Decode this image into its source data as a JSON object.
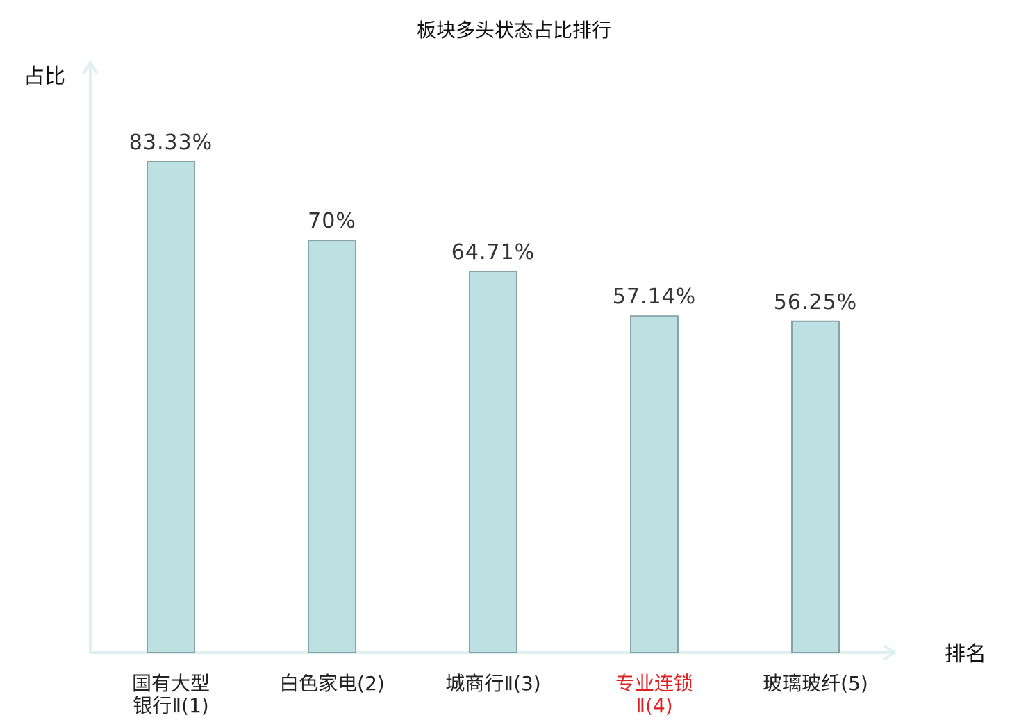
{
  "chart_data": {
    "type": "bar",
    "title": "板块多头状态占比排行",
    "xlabel": "排名",
    "ylabel": "占比",
    "ylim": [
      0,
      100
    ],
    "grid": false,
    "categories": [
      {
        "lines": [
          "国有大型",
          "银行Ⅱ(1)"
        ],
        "highlight": false
      },
      {
        "lines": [
          "白色家电(2)"
        ],
        "highlight": false
      },
      {
        "lines": [
          "城商行Ⅱ(3)"
        ],
        "highlight": false
      },
      {
        "lines": [
          "专业连锁",
          "Ⅱ(4)"
        ],
        "highlight": true
      },
      {
        "lines": [
          "玻璃玻纤(5)"
        ],
        "highlight": false
      }
    ],
    "values": [
      83.33,
      70,
      64.71,
      57.14,
      56.25
    ],
    "data_labels": [
      "83.33%",
      "70%",
      "64.71%",
      "57.14%",
      "56.25%"
    ],
    "colors": {
      "bar_fill": "#bde0e2",
      "bar_stroke": "#86a3a5",
      "axis": "#dff1ef",
      "highlight_text": "#e02020"
    }
  }
}
